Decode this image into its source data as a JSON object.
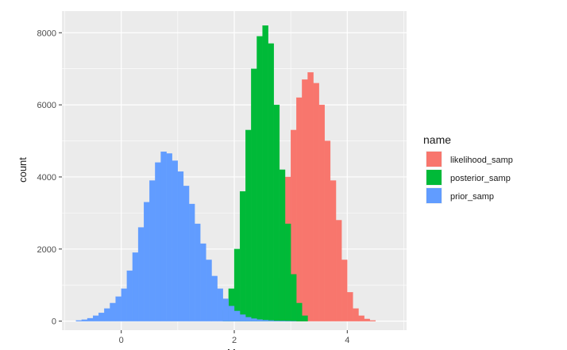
{
  "chart_data": {
    "type": "bar",
    "subtype": "histogram",
    "xlabel": "Mu",
    "ylabel": "count",
    "xlim": [
      -1.05,
      5.05
    ],
    "ylim": [
      -250,
      8600
    ],
    "x_ticks": [
      0,
      2,
      4
    ],
    "y_ticks": [
      0,
      2000,
      4000,
      6000,
      8000
    ],
    "x_minor_ticks": [
      -1,
      1,
      3,
      5
    ],
    "y_minor_ticks": [
      1000,
      3000,
      5000,
      7000
    ],
    "grid": true,
    "legend_title": "name",
    "legend_position": "right",
    "bin_width": 0.1,
    "series": [
      {
        "name": "likelihood_samp",
        "color": "#F8766D",
        "bins_start": [
          2.7,
          2.8,
          2.9,
          3.0,
          3.1,
          3.2,
          3.3,
          3.4,
          3.5,
          3.6,
          3.7,
          3.8,
          3.9,
          4.0,
          4.1,
          4.2,
          4.3,
          4.4
        ],
        "values": [
          1200,
          2500,
          4000,
          5300,
          6200,
          6700,
          6900,
          6600,
          6000,
          5000,
          3900,
          2800,
          1700,
          800,
          350,
          150,
          60,
          20
        ]
      },
      {
        "name": "posterior_samp",
        "color": "#00BA38",
        "bins_start": [
          1.8,
          1.9,
          2.0,
          2.1,
          2.2,
          2.3,
          2.4,
          2.5,
          2.6,
          2.7,
          2.8,
          2.9,
          3.0,
          3.1,
          3.2
        ],
        "values": [
          300,
          900,
          2000,
          3600,
          5300,
          7000,
          7900,
          8200,
          7700,
          6000,
          4200,
          2700,
          1300,
          500,
          150
        ]
      },
      {
        "name": "prior_samp",
        "color": "#619CFF",
        "bins_start": [
          -0.8,
          -0.7,
          -0.6,
          -0.5,
          -0.4,
          -0.3,
          -0.2,
          -0.1,
          0.0,
          0.1,
          0.2,
          0.3,
          0.4,
          0.5,
          0.6,
          0.7,
          0.8,
          0.9,
          1.0,
          1.1,
          1.2,
          1.3,
          1.4,
          1.5,
          1.6,
          1.7,
          1.8,
          1.9,
          2.0,
          2.1,
          2.2,
          2.3,
          2.4,
          2.5,
          2.6,
          2.7,
          2.8,
          2.9,
          3.0
        ],
        "values": [
          20,
          40,
          80,
          150,
          230,
          350,
          500,
          680,
          900,
          1400,
          1900,
          2600,
          3300,
          3900,
          4400,
          4700,
          4650,
          4450,
          4150,
          3750,
          3250,
          2700,
          2150,
          1700,
          1250,
          900,
          620,
          420,
          280,
          180,
          110,
          70,
          45,
          28,
          18,
          10,
          6,
          4,
          2
        ]
      }
    ]
  }
}
